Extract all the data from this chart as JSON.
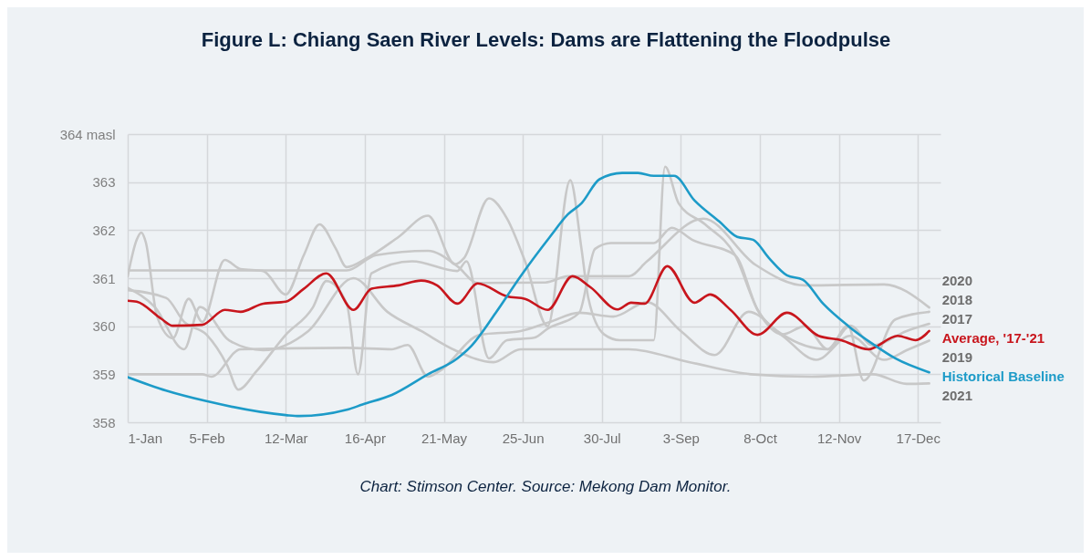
{
  "chart_data": {
    "type": "line",
    "title": "Figure L: Chiang Saen River Levels: Dams are Flattening the Floodpulse",
    "annotations": [
      "Chart: Stimson Center. Source: Mekong Dam Monitor."
    ],
    "xlim": [
      "--01-01",
      "--12-27"
    ],
    "xticks": [
      {
        "value": "--01-01",
        "label": "1-Jan"
      },
      {
        "value": "--02-05",
        "label": "5-Feb"
      },
      {
        "value": "--03-12",
        "label": "12-Mar"
      },
      {
        "value": "--04-16",
        "label": "16-Apr"
      },
      {
        "value": "--05-21",
        "label": "21-May"
      },
      {
        "value": "--06-25",
        "label": "25-Jun"
      },
      {
        "value": "--07-30",
        "label": "30-Jul"
      },
      {
        "value": "--09-03",
        "label": "3-Sep"
      },
      {
        "value": "--10-08",
        "label": "8-Oct"
      },
      {
        "value": "--11-12",
        "label": "12-Nov"
      },
      {
        "value": "--12-17",
        "label": "17-Dec"
      }
    ],
    "ylim": [
      358,
      364
    ],
    "yticks": [
      358,
      359,
      360,
      361,
      362,
      363,
      {
        "value": 364,
        "label": "364 masl"
      }
    ],
    "grid": true,
    "line_style": "solid",
    "series": [
      {
        "name": "2017",
        "color": "#c8c8c8",
        "x": [
          "--01-01",
          "--01-18",
          "--01-26",
          "--02-05",
          "--02-14",
          "--02-19",
          "--02-27",
          "--03-12",
          "--03-24",
          "--03-30",
          "--04-08",
          "--04-13",
          "--04-19",
          "--05-07",
          "--05-27",
          "--05-31",
          "--06-10",
          "--06-18",
          "--06-30",
          "--07-06",
          "--07-20",
          "--07-27",
          "--08-03",
          "--08-22",
          "--08-30",
          "--09-08",
          "--09-27",
          "--10-07",
          "--10-18",
          "--11-07",
          "--11-17",
          "--11-27",
          "--12-12",
          "--12-22"
        ],
        "values": [
          360.75,
          360.59,
          360.09,
          359.82,
          359.19,
          358.68,
          359.06,
          359.82,
          360.39,
          360.94,
          360.47,
          359.0,
          361.1,
          361.35,
          361.15,
          361.35,
          359.33,
          359.71,
          359.76,
          359.95,
          360.28,
          361.61,
          361.73,
          361.73,
          362.05,
          361.8,
          361.48,
          360.34,
          359.83,
          359.52,
          360.01,
          359.6,
          359.9,
          360.05
        ]
      },
      {
        "name": "2018",
        "color": "#c8c8c8",
        "x": [
          "--01-01",
          "--01-05",
          "--01-07",
          "--01-09",
          "--01-14",
          "--01-21",
          "--01-28",
          "--02-03",
          "--02-13",
          "--02-20",
          "--03-02",
          "--03-12",
          "--03-20",
          "--03-27",
          "--04-03",
          "--04-08",
          "--04-17",
          "--05-01",
          "--05-14",
          "--05-26",
          "--05-30",
          "--06-10",
          "--06-18",
          "--06-26",
          "--07-06",
          "--07-16",
          "--07-21",
          "--07-24",
          "--07-31",
          "--08-07",
          "--08-22",
          "--08-27",
          "--09-02",
          "--09-14",
          "--09-27",
          "--10-07",
          "--10-18",
          "--10-28",
          "--11-07",
          "--11-16",
          "--11-23",
          "--12-07",
          "--12-22"
        ],
        "values": [
          361.04,
          361.8,
          361.95,
          361.75,
          360.2,
          359.75,
          360.57,
          360.09,
          361.38,
          361.19,
          361.15,
          360.66,
          361.48,
          362.12,
          361.63,
          361.23,
          361.42,
          361.86,
          362.3,
          361.29,
          361.42,
          362.66,
          362.24,
          361.35,
          360.0,
          363.04,
          361.61,
          360.59,
          359.83,
          359.71,
          359.71,
          363.32,
          362.56,
          362.11,
          361.48,
          360.34,
          359.83,
          360.0,
          359.52,
          360.01,
          358.87,
          360.14,
          360.3
        ]
      },
      {
        "name": "2019",
        "color": "#c8c8c8",
        "x": [
          "--01-01",
          "--02-03",
          "--02-07",
          "--02-20",
          "--04-08",
          "--04-28",
          "--05-05",
          "--05-14",
          "--05-19",
          "--06-06",
          "--06-24",
          "--07-07",
          "--07-20",
          "--08-04",
          "--08-19",
          "--09-03",
          "--09-18",
          "--10-03",
          "--10-18",
          "--11-02",
          "--11-17",
          "--12-02",
          "--12-12",
          "--12-22"
        ],
        "values": [
          359.0,
          359.0,
          358.95,
          359.52,
          359.55,
          359.52,
          359.61,
          358.95,
          359.06,
          359.82,
          359.9,
          360.09,
          360.28,
          360.2,
          360.5,
          359.9,
          359.4,
          360.3,
          359.8,
          359.3,
          359.8,
          359.3,
          359.5,
          359.7
        ]
      },
      {
        "name": "2020",
        "color": "#c8c8c8",
        "x": [
          "--01-01",
          "--04-08",
          "--04-21",
          "--05-14",
          "--05-27",
          "--06-05",
          "--07-05",
          "--07-15",
          "--08-11",
          "--08-19",
          "--09-13",
          "--10-06",
          "--10-28",
          "--12-02",
          "--12-22"
        ],
        "values": [
          361.16,
          361.16,
          361.48,
          361.57,
          361.25,
          360.9,
          360.91,
          361.04,
          361.04,
          361.35,
          362.24,
          361.28,
          360.85,
          360.87,
          360.39
        ]
      },
      {
        "name": "2021",
        "color": "#c8c8c8",
        "x": [
          "--01-01",
          "--01-13",
          "--01-26",
          "--02-02",
          "--02-15",
          "--03-02",
          "--03-22",
          "--04-11",
          "--04-26",
          "--05-11",
          "--05-26",
          "--06-12",
          "--06-24",
          "--08-11",
          "--09-07",
          "--10-04",
          "--10-31",
          "--11-27",
          "--12-12",
          "--12-22"
        ],
        "values": [
          360.8,
          360.4,
          359.52,
          360.4,
          359.7,
          359.5,
          359.9,
          361.0,
          360.3,
          359.9,
          359.5,
          359.25,
          359.52,
          359.52,
          359.25,
          359.0,
          358.95,
          359.0,
          358.8,
          358.81
        ]
      },
      {
        "name": "Average, '17-'21",
        "color": "#c8161d",
        "x": [
          "--01-01",
          "--01-05",
          "--01-16",
          "--01-21",
          "--02-03",
          "--02-13",
          "--02-20",
          "--03-02",
          "--03-12",
          "--03-20",
          "--03-30",
          "--04-11",
          "--04-19",
          "--05-01",
          "--05-11",
          "--05-18",
          "--05-27",
          "--06-05",
          "--06-18",
          "--06-26",
          "--07-06",
          "--07-17",
          "--07-25",
          "--08-06",
          "--08-12",
          "--08-18",
          "--08-28",
          "--09-09",
          "--09-16",
          "--09-25",
          "--10-07",
          "--10-20",
          "--11-03",
          "--11-13",
          "--11-25",
          "--12-08",
          "--12-16",
          "--12-22"
        ],
        "values": [
          360.53,
          360.51,
          360.15,
          360.01,
          360.03,
          360.34,
          360.3,
          360.47,
          360.51,
          360.78,
          361.1,
          360.34,
          360.78,
          360.85,
          360.95,
          360.85,
          360.47,
          360.89,
          360.62,
          360.57,
          360.34,
          361.04,
          360.81,
          360.35,
          360.49,
          360.47,
          361.25,
          360.49,
          360.66,
          360.34,
          359.82,
          360.28,
          359.8,
          359.71,
          359.52,
          359.8,
          359.71,
          359.9
        ]
      },
      {
        "name": "Historical Baseline",
        "color": "#1d9bc8",
        "x": [
          "--01-01",
          "--01-18",
          "--02-04",
          "--03-12",
          "--03-18",
          "--04-08",
          "--04-15",
          "--04-28",
          "--05-14",
          "--05-27",
          "--06-02",
          "--06-13",
          "--06-24",
          "--07-07",
          "--07-15",
          "--07-21",
          "--07-29",
          "--08-08",
          "--08-15",
          "--08-22",
          "--08-31",
          "--09-09",
          "--09-20",
          "--09-28",
          "--10-05",
          "--10-12",
          "--10-20",
          "--10-27",
          "--11-05",
          "--11-16",
          "--11-27",
          "--12-07",
          "--12-22"
        ],
        "values": [
          358.94,
          358.66,
          358.45,
          358.15,
          358.13,
          358.26,
          358.37,
          358.57,
          359.0,
          359.33,
          359.58,
          360.28,
          361.04,
          361.86,
          362.33,
          362.56,
          363.06,
          363.19,
          363.19,
          363.13,
          363.13,
          362.62,
          362.18,
          361.86,
          361.8,
          361.42,
          361.06,
          360.97,
          360.47,
          360.01,
          359.63,
          359.33,
          359.04
        ]
      }
    ]
  }
}
